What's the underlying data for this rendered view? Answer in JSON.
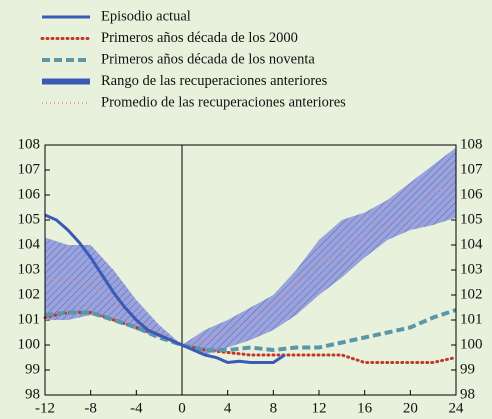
{
  "chart_data": {
    "type": "line",
    "series": [
      {
        "name": "Episodio actual",
        "color": "#3a5bb5",
        "style": "solid",
        "x": [
          -12,
          -11,
          -10,
          -9,
          -8,
          -7,
          -6,
          -5,
          -4,
          -3,
          -2,
          -1,
          0,
          1,
          2,
          3,
          4,
          5,
          6,
          7,
          8,
          9
        ],
        "values": [
          105.2,
          105.0,
          104.6,
          104.1,
          103.5,
          102.8,
          102.1,
          101.5,
          101.0,
          100.6,
          100.4,
          100.2,
          100,
          99.8,
          99.6,
          99.5,
          99.3,
          99.35,
          99.3,
          99.3,
          99.3,
          99.6
        ]
      },
      {
        "name": "Primeros años década de los 2000",
        "color": "#c0392b",
        "style": "dotted",
        "x": [
          -12,
          -10,
          -8,
          -6,
          -4,
          -2,
          0,
          2,
          4,
          6,
          8,
          10,
          12,
          14,
          16,
          18,
          20,
          22,
          24
        ],
        "values": [
          101.1,
          101.3,
          101.3,
          101.0,
          100.7,
          100.4,
          100,
          99.8,
          99.7,
          99.6,
          99.6,
          99.6,
          99.6,
          99.6,
          99.3,
          99.3,
          99.3,
          99.3,
          99.5
        ]
      },
      {
        "name": "Primeros años década de los noventa",
        "color": "#5a97a8",
        "style": "dashed",
        "x": [
          -12,
          -10,
          -8,
          -6,
          -4,
          -2,
          0,
          2,
          4,
          6,
          8,
          10,
          12,
          14,
          16,
          18,
          20,
          22,
          24
        ],
        "values": [
          101.2,
          101.3,
          101.3,
          101.0,
          100.7,
          100.3,
          100,
          99.8,
          99.8,
          99.9,
          99.8,
          99.9,
          99.9,
          100.1,
          100.3,
          100.5,
          100.7,
          101.1,
          101.4
        ]
      },
      {
        "name": "Rango de las recuperaciones anteriores",
        "color": "#3a5bb5",
        "style": "band",
        "x": [
          -12,
          -10,
          -8,
          -6,
          -4,
          -2,
          0,
          2,
          4,
          6,
          8,
          10,
          12,
          14,
          16,
          18,
          20,
          22,
          24
        ],
        "upper": [
          104.3,
          104.0,
          104.0,
          103.0,
          101.8,
          100.8,
          100,
          100.6,
          101.0,
          101.5,
          102.0,
          103.0,
          104.2,
          105.0,
          105.3,
          105.8,
          106.5,
          107.2,
          107.9
        ],
        "lower": [
          101.0,
          101.0,
          101.2,
          101.0,
          100.6,
          100.3,
          100,
          99.6,
          99.9,
          100.2,
          100.6,
          101.2,
          102.0,
          102.7,
          103.5,
          104.2,
          104.6,
          104.8,
          105.1
        ]
      },
      {
        "name": "Promedio de las recuperaciones anteriores",
        "color": "#e08a8a",
        "style": "dotted-thin",
        "x": [
          -12,
          -10,
          -8,
          -6,
          -4,
          -2,
          0,
          2,
          4,
          6,
          8,
          10,
          12,
          14,
          16,
          18,
          20,
          22,
          24
        ],
        "values": [
          102.6,
          102.6,
          102.4,
          101.8,
          101.1,
          100.5,
          100,
          100.2,
          100.5,
          101.0,
          101.6,
          102.4,
          103.2,
          103.8,
          104.3,
          104.8,
          105.4,
          106.0,
          106.7
        ]
      }
    ],
    "xlim": [
      -12,
      24
    ],
    "xticks": [
      -12,
      -8,
      -4,
      0,
      4,
      8,
      12,
      16,
      20,
      24
    ],
    "ylim": [
      98,
      108
    ],
    "yticks": [
      98,
      99,
      100,
      101,
      102,
      103,
      104,
      105,
      106,
      107,
      108
    ],
    "y2lim": [
      98,
      108
    ],
    "y2ticks": [
      98,
      99,
      100,
      101,
      102,
      103,
      104,
      105,
      106,
      107,
      108
    ]
  }
}
